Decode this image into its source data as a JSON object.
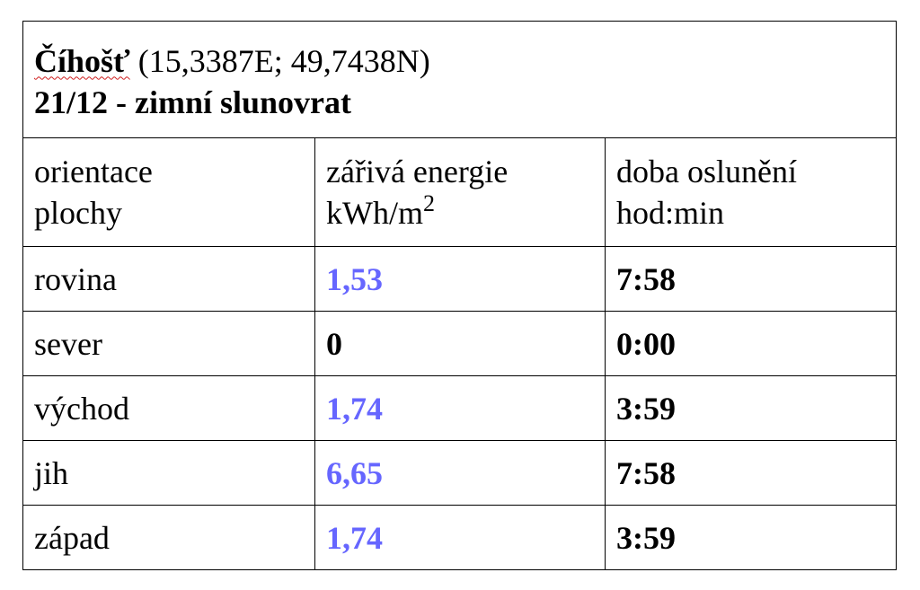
{
  "header": {
    "place": "Číhošť",
    "coordinates": "(15,3387E; 49,7438N)",
    "subtitle": "21/12 - zimní slunovrat"
  },
  "table": {
    "columns": [
      {
        "line1": "orientace",
        "line2": "plochy"
      },
      {
        "line1": "zářivá energie",
        "line2": "kWh/m",
        "sup": "2"
      },
      {
        "line1": "doba oslunění",
        "line2": "hod:min"
      }
    ],
    "rows": [
      {
        "orientation": "rovina",
        "energy": "1,53",
        "energy_color": "#6666ff",
        "duration": "7:58"
      },
      {
        "orientation": "sever",
        "energy": "0",
        "energy_color": "#000000",
        "duration": "0:00"
      },
      {
        "orientation": "východ",
        "energy": "1,74",
        "energy_color": "#6666ff",
        "duration": "3:59"
      },
      {
        "orientation": "jih",
        "energy": "6,65",
        "energy_color": "#6666ff",
        "duration": "7:58"
      },
      {
        "orientation": "západ",
        "energy": "1,74",
        "energy_color": "#6666ff",
        "duration": "3:59"
      }
    ]
  }
}
